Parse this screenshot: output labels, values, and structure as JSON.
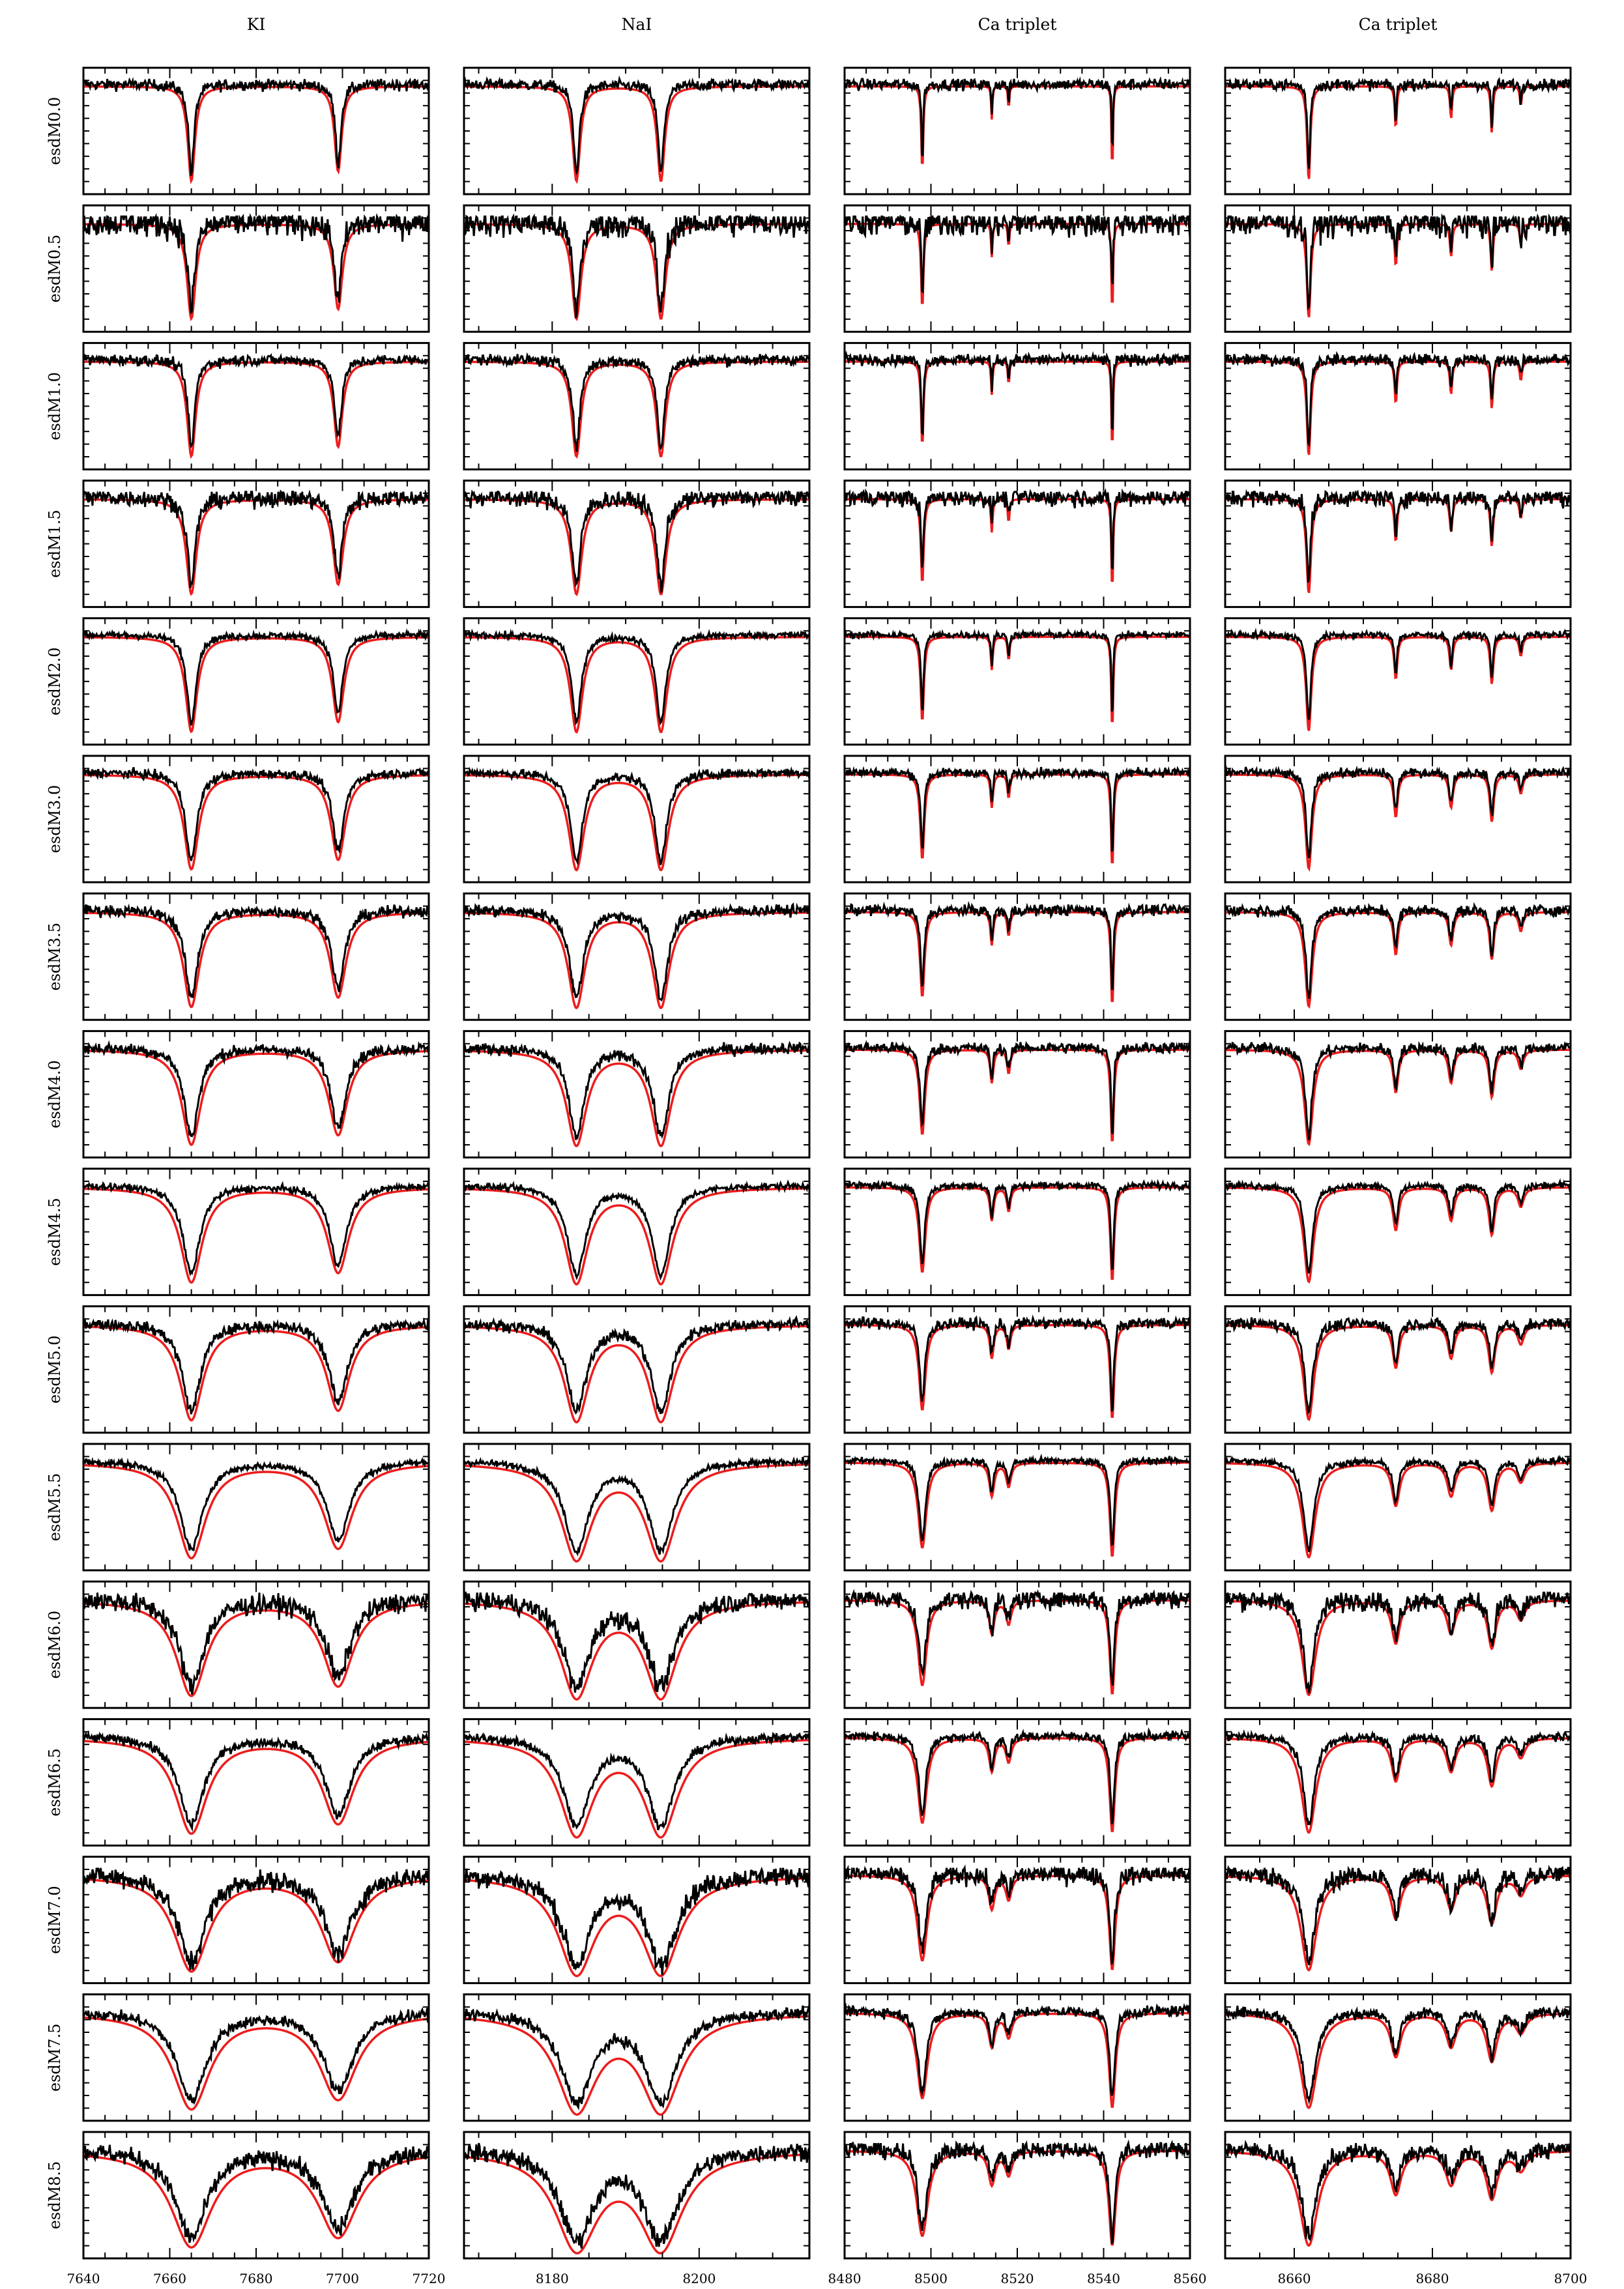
{
  "chart_data": {
    "type": "line",
    "column_titles": [
      "KI",
      "NaI",
      "Ca triplet",
      "Ca triplet"
    ],
    "row_labels": [
      "esdM0.0",
      "esdM0.5",
      "esdM1.0",
      "esdM1.5",
      "esdM2.0",
      "esdM3.0",
      "esdM3.5",
      "esdM4.0",
      "esdM4.5",
      "esdM5.0",
      "esdM5.5",
      "esdM6.0",
      "esdM6.5",
      "esdM7.0",
      "esdM7.5",
      "esdM8.5"
    ],
    "columns": [
      {
        "xlim": [
          7640,
          7720
        ],
        "xticks": [
          7640,
          7660,
          7680,
          7700,
          7720
        ],
        "line_centers": [
          7665,
          7699
        ],
        "line_depths": [
          1.0,
          0.9
        ]
      },
      {
        "xlim": [
          8168,
          8215
        ],
        "xticks": [
          8180,
          8200
        ],
        "line_centers": [
          8183.3,
          8194.8
        ],
        "line_depths": [
          1.0,
          1.0
        ]
      },
      {
        "xlim": [
          8480,
          8560
        ],
        "xticks": [
          8480,
          8500,
          8520,
          8540,
          8560
        ],
        "line_centers": [
          8498,
          8514.1,
          8518,
          8542
        ],
        "line_depths": [
          0.9,
          0.35,
          0.25,
          1.0
        ]
      },
      {
        "xlim": [
          8650,
          8700
        ],
        "xticks": [
          8660,
          8680,
          8700
        ],
        "line_centers": [
          8662.1,
          8674.7,
          8682.7,
          8688.6,
          8692.8
        ],
        "line_depths": [
          1.0,
          0.45,
          0.35,
          0.5,
          0.2
        ]
      }
    ],
    "row_params": {
      "widths": [
        0.5,
        0.6,
        0.6,
        0.7,
        0.8,
        1.0,
        1.1,
        1.3,
        1.5,
        1.6,
        2.0,
        2.1,
        2.2,
        2.4,
        2.6,
        2.8
      ],
      "noise": [
        0.05,
        0.13,
        0.05,
        0.08,
        0.03,
        0.04,
        0.05,
        0.05,
        0.03,
        0.05,
        0.03,
        0.09,
        0.04,
        0.09,
        0.05,
        0.08
      ]
    },
    "series": [
      {
        "name": "",
        "color": "#000000"
      },
      {
        "name": "",
        "color": "#ee1c1c"
      }
    ]
  }
}
